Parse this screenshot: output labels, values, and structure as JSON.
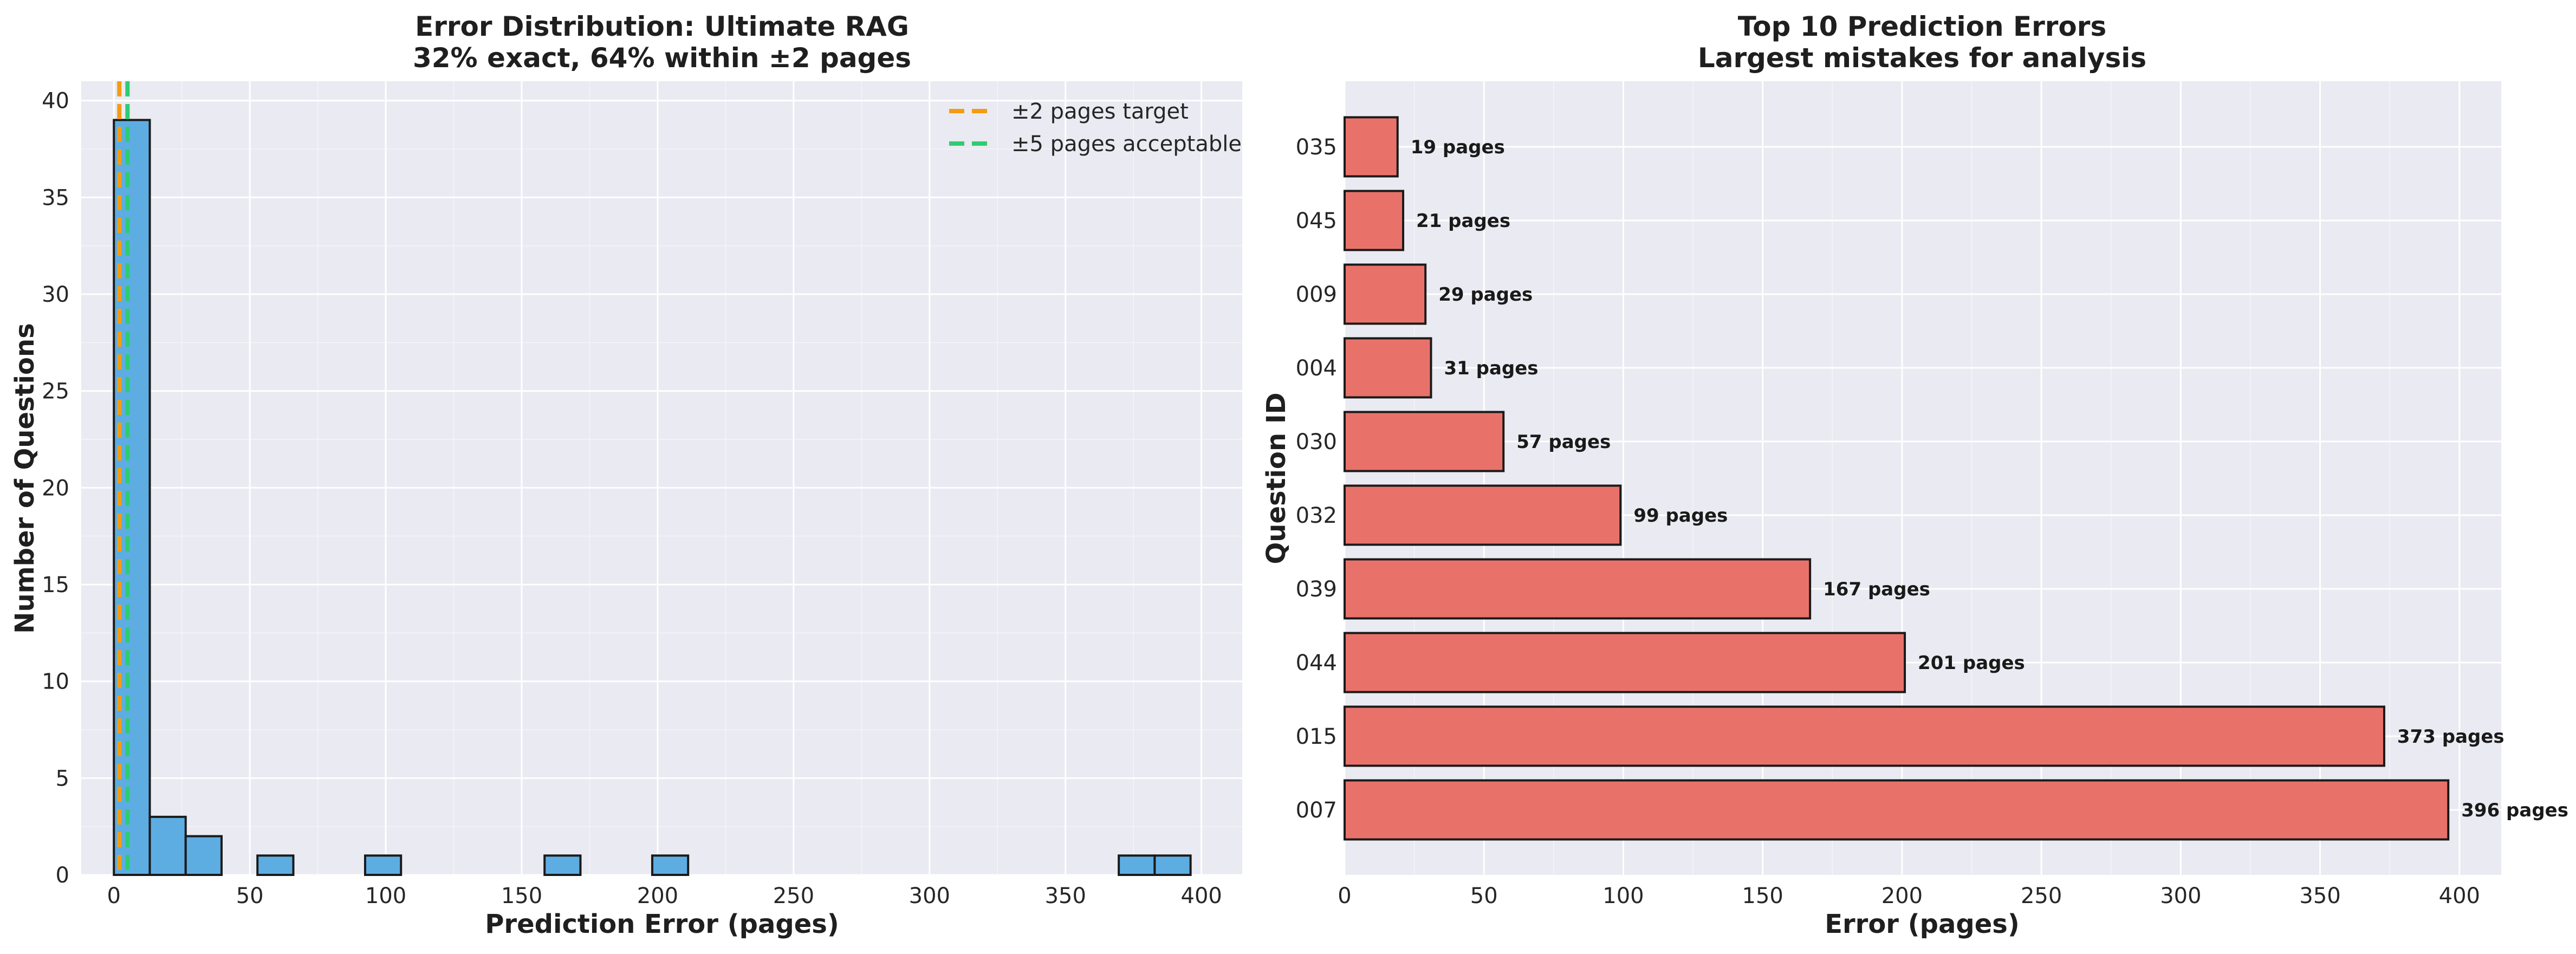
{
  "chart_data": [
    {
      "type": "bar",
      "title": "Error Distribution: Ultimate RAG",
      "subtitle": "32% exact, 64% within ±2 pages",
      "xlabel": "Prediction Error (pages)",
      "ylabel": "Number of Questions",
      "xlim": [
        -12,
        415
      ],
      "ylim": [
        0,
        41
      ],
      "xticks": [
        0,
        50,
        100,
        150,
        200,
        250,
        300,
        350,
        400
      ],
      "yticks": [
        0,
        5,
        10,
        15,
        20,
        25,
        30,
        35,
        40
      ],
      "bins": [
        {
          "start": 0,
          "end": 13.2,
          "count": 39
        },
        {
          "start": 13.2,
          "end": 26.4,
          "count": 3
        },
        {
          "start": 26.4,
          "end": 39.6,
          "count": 2
        },
        {
          "start": 52.8,
          "end": 66.0,
          "count": 1
        },
        {
          "start": 92.4,
          "end": 105.6,
          "count": 1
        },
        {
          "start": 158.4,
          "end": 171.6,
          "count": 1
        },
        {
          "start": 198.0,
          "end": 211.2,
          "count": 1
        },
        {
          "start": 369.6,
          "end": 382.8,
          "count": 1
        },
        {
          "start": 382.8,
          "end": 396.0,
          "count": 1
        }
      ],
      "reference_lines": [
        {
          "x": 2,
          "label": "±2 pages target",
          "color": "#f39c12"
        },
        {
          "x": 5,
          "label": "±5 pages acceptable",
          "color": "#2ecc71"
        }
      ],
      "bar_color": "#5dade2",
      "legend": "top-right",
      "grid": true
    },
    {
      "type": "bar",
      "orientation": "horizontal",
      "title": "Top 10 Prediction Errors",
      "subtitle": "Largest mistakes for analysis",
      "xlabel": "Error (pages)",
      "ylabel": "Question ID",
      "xlim": [
        0,
        415
      ],
      "xticks": [
        0,
        50,
        100,
        150,
        200,
        250,
        300,
        350,
        400
      ],
      "categories": [
        "035",
        "045",
        "009",
        "004",
        "030",
        "032",
        "039",
        "044",
        "015",
        "007"
      ],
      "values": [
        19,
        21,
        29,
        31,
        57,
        99,
        167,
        201,
        373,
        396
      ],
      "value_labels": [
        "19 pages",
        "21 pages",
        "29 pages",
        "31 pages",
        "57 pages",
        "99 pages",
        "167 pages",
        "201 pages",
        "373 pages",
        "396 pages"
      ],
      "bar_color": "#e8726a",
      "grid": true
    }
  ]
}
